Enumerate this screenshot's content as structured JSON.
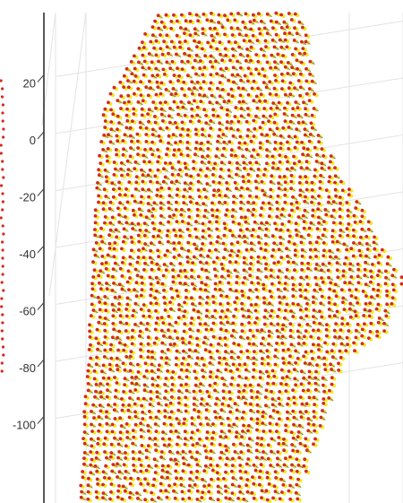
{
  "chart_data": {
    "type": "scatter",
    "title": "",
    "xlabel": "",
    "ylabel": "",
    "ylim": [
      -110,
      35
    ],
    "y_ticks": [
      "20",
      "0",
      "-20",
      "-40",
      "-60",
      "-80",
      "-100"
    ],
    "y_tick_values": [
      20,
      0,
      -20,
      -40,
      -60,
      -80,
      -100
    ],
    "grid": true,
    "series": [
      {
        "marker": "dot",
        "color": "#d42a1f"
      },
      {
        "marker": "dot",
        "color": "#f3ea1e"
      },
      {
        "marker": "segment",
        "color": "#5b6db8"
      }
    ]
  }
}
